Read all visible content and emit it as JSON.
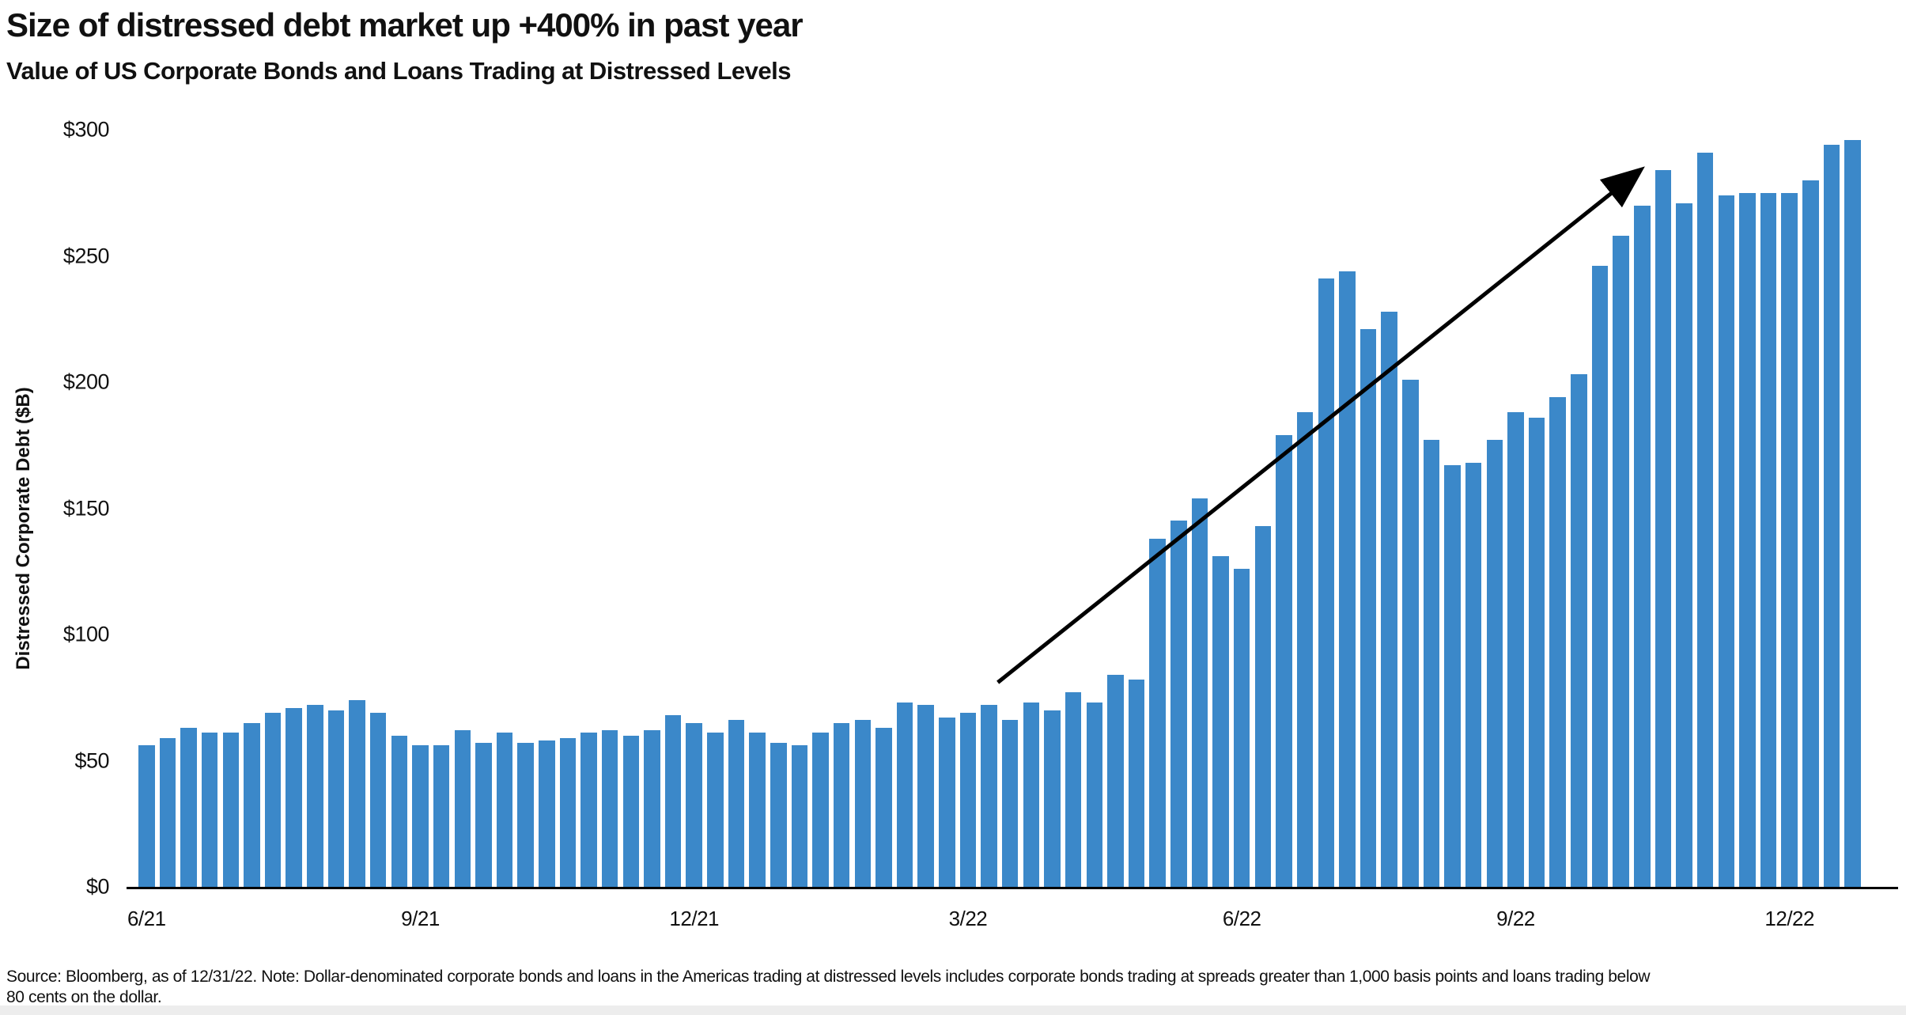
{
  "title": "Size of distressed debt market up +400% in past year",
  "subtitle": "Value of US Corporate Bonds and Loans Trading at Distressed Levels",
  "y_axis": {
    "label": "Distressed Corporate Debt ($B)",
    "ticks": [
      "$300",
      "$250",
      "$200",
      "$150",
      "$100",
      "$50",
      "$0"
    ]
  },
  "x_axis": {
    "tick_labels": [
      "6/21",
      "9/21",
      "12/21",
      "3/22",
      "6/22",
      "9/22",
      "12/22"
    ],
    "tick_bar_indices": [
      0,
      13,
      26,
      39,
      52,
      65,
      78
    ]
  },
  "chart_data": {
    "type": "bar",
    "title": "Size of distressed debt market up +400% in past year",
    "subtitle": "Value of US Corporate Bonds and Loans Trading at Distressed Levels",
    "xlabel": "",
    "ylabel": "Distressed Corporate Debt ($B)",
    "ylim": [
      0,
      300
    ],
    "grid": false,
    "legend": false,
    "x_tick_labels": [
      "6/21",
      "9/21",
      "12/21",
      "3/22",
      "6/22",
      "9/22",
      "12/22"
    ],
    "x_tick_indices": [
      0,
      13,
      26,
      39,
      52,
      65,
      78
    ],
    "values": [
      56,
      59,
      63,
      61,
      61,
      65,
      69,
      71,
      72,
      70,
      74,
      69,
      60,
      56,
      56,
      62,
      57,
      61,
      57,
      58,
      59,
      61,
      62,
      60,
      62,
      68,
      65,
      61,
      66,
      61,
      57,
      56,
      61,
      65,
      66,
      63,
      73,
      72,
      67,
      69,
      72,
      66,
      73,
      70,
      77,
      73,
      84,
      82,
      138,
      145,
      154,
      131,
      126,
      143,
      179,
      188,
      241,
      244,
      221,
      228,
      201,
      177,
      167,
      168,
      177,
      188,
      186,
      194,
      203,
      246,
      258,
      270,
      284,
      271,
      291,
      274,
      275,
      275,
      275,
      280,
      294,
      296
    ],
    "bar_color": "#3B88C9",
    "annotation_arrow": {
      "x1_bar": 40.8,
      "y1_value": 81,
      "x2_bar": 71.3,
      "y2_value": 284
    }
  },
  "source_note": {
    "line1": "Source: Bloomberg, as of 12/31/22. Note: Dollar-denominated corporate bonds and loans in the Americas trading at distressed levels includes corporate bonds trading at spreads greater than 1,000 basis points and loans trading below",
    "line2": "80 cents on the dollar."
  },
  "colors": {
    "bar": "#3B88C9",
    "axis": "#000000",
    "text": "#111111",
    "background": "#FFFFFF",
    "footer_strip": "#EDEDED"
  }
}
